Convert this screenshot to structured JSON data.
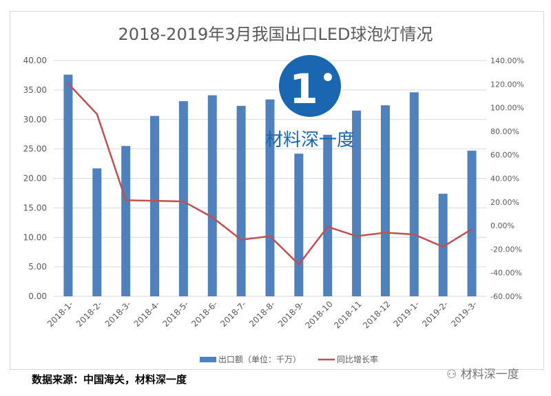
{
  "chart_data": {
    "type": "bar+line",
    "title": "2018-2019年3月我国出口LED球泡灯情况",
    "categories": [
      "2018-1-",
      "2018-2-",
      "2018-3-",
      "2018-4-",
      "2018-5-",
      "2018-6-",
      "2018-7-",
      "2018-8-",
      "2018-9-",
      "2018-10",
      "2018-11",
      "2018-12",
      "2019-1-",
      "2019-2-",
      "2019-3-"
    ],
    "series": [
      {
        "name": "出口额（单位：千万）",
        "type": "bar",
        "axis": "left",
        "color": "#4f81bd",
        "values": [
          37.6,
          21.7,
          25.5,
          30.6,
          33.1,
          34.1,
          32.3,
          33.4,
          24.2,
          27.4,
          31.5,
          32.4,
          34.6,
          17.4,
          24.7
        ]
      },
      {
        "name": "同比增长率",
        "type": "line",
        "axis": "right",
        "color": "#c0504d",
        "values": [
          120.5,
          94.5,
          21.5,
          21,
          20.5,
          7,
          -12,
          -9,
          -33,
          -1,
          -9,
          -6,
          -7.5,
          -18,
          -3
        ]
      }
    ],
    "ylim": [
      0,
      40
    ],
    "y_ticks": [
      "0.00",
      "5.00",
      "10.00",
      "15.00",
      "20.00",
      "25.00",
      "30.00",
      "35.00",
      "40.00"
    ],
    "y2lim": [
      -60,
      140
    ],
    "y2_ticks": [
      "-60.00%",
      "-40.00%",
      "-20.00%",
      "0.00%",
      "20.00%",
      "40.00%",
      "60.00%",
      "80.00%",
      "100.00%",
      "120.00%",
      "140.00%"
    ],
    "legend": "bottom",
    "grid": true
  },
  "source": "数据来源：中国海关，材料深一度",
  "logo_text": "材料深一度",
  "watermark": "材料深一度"
}
